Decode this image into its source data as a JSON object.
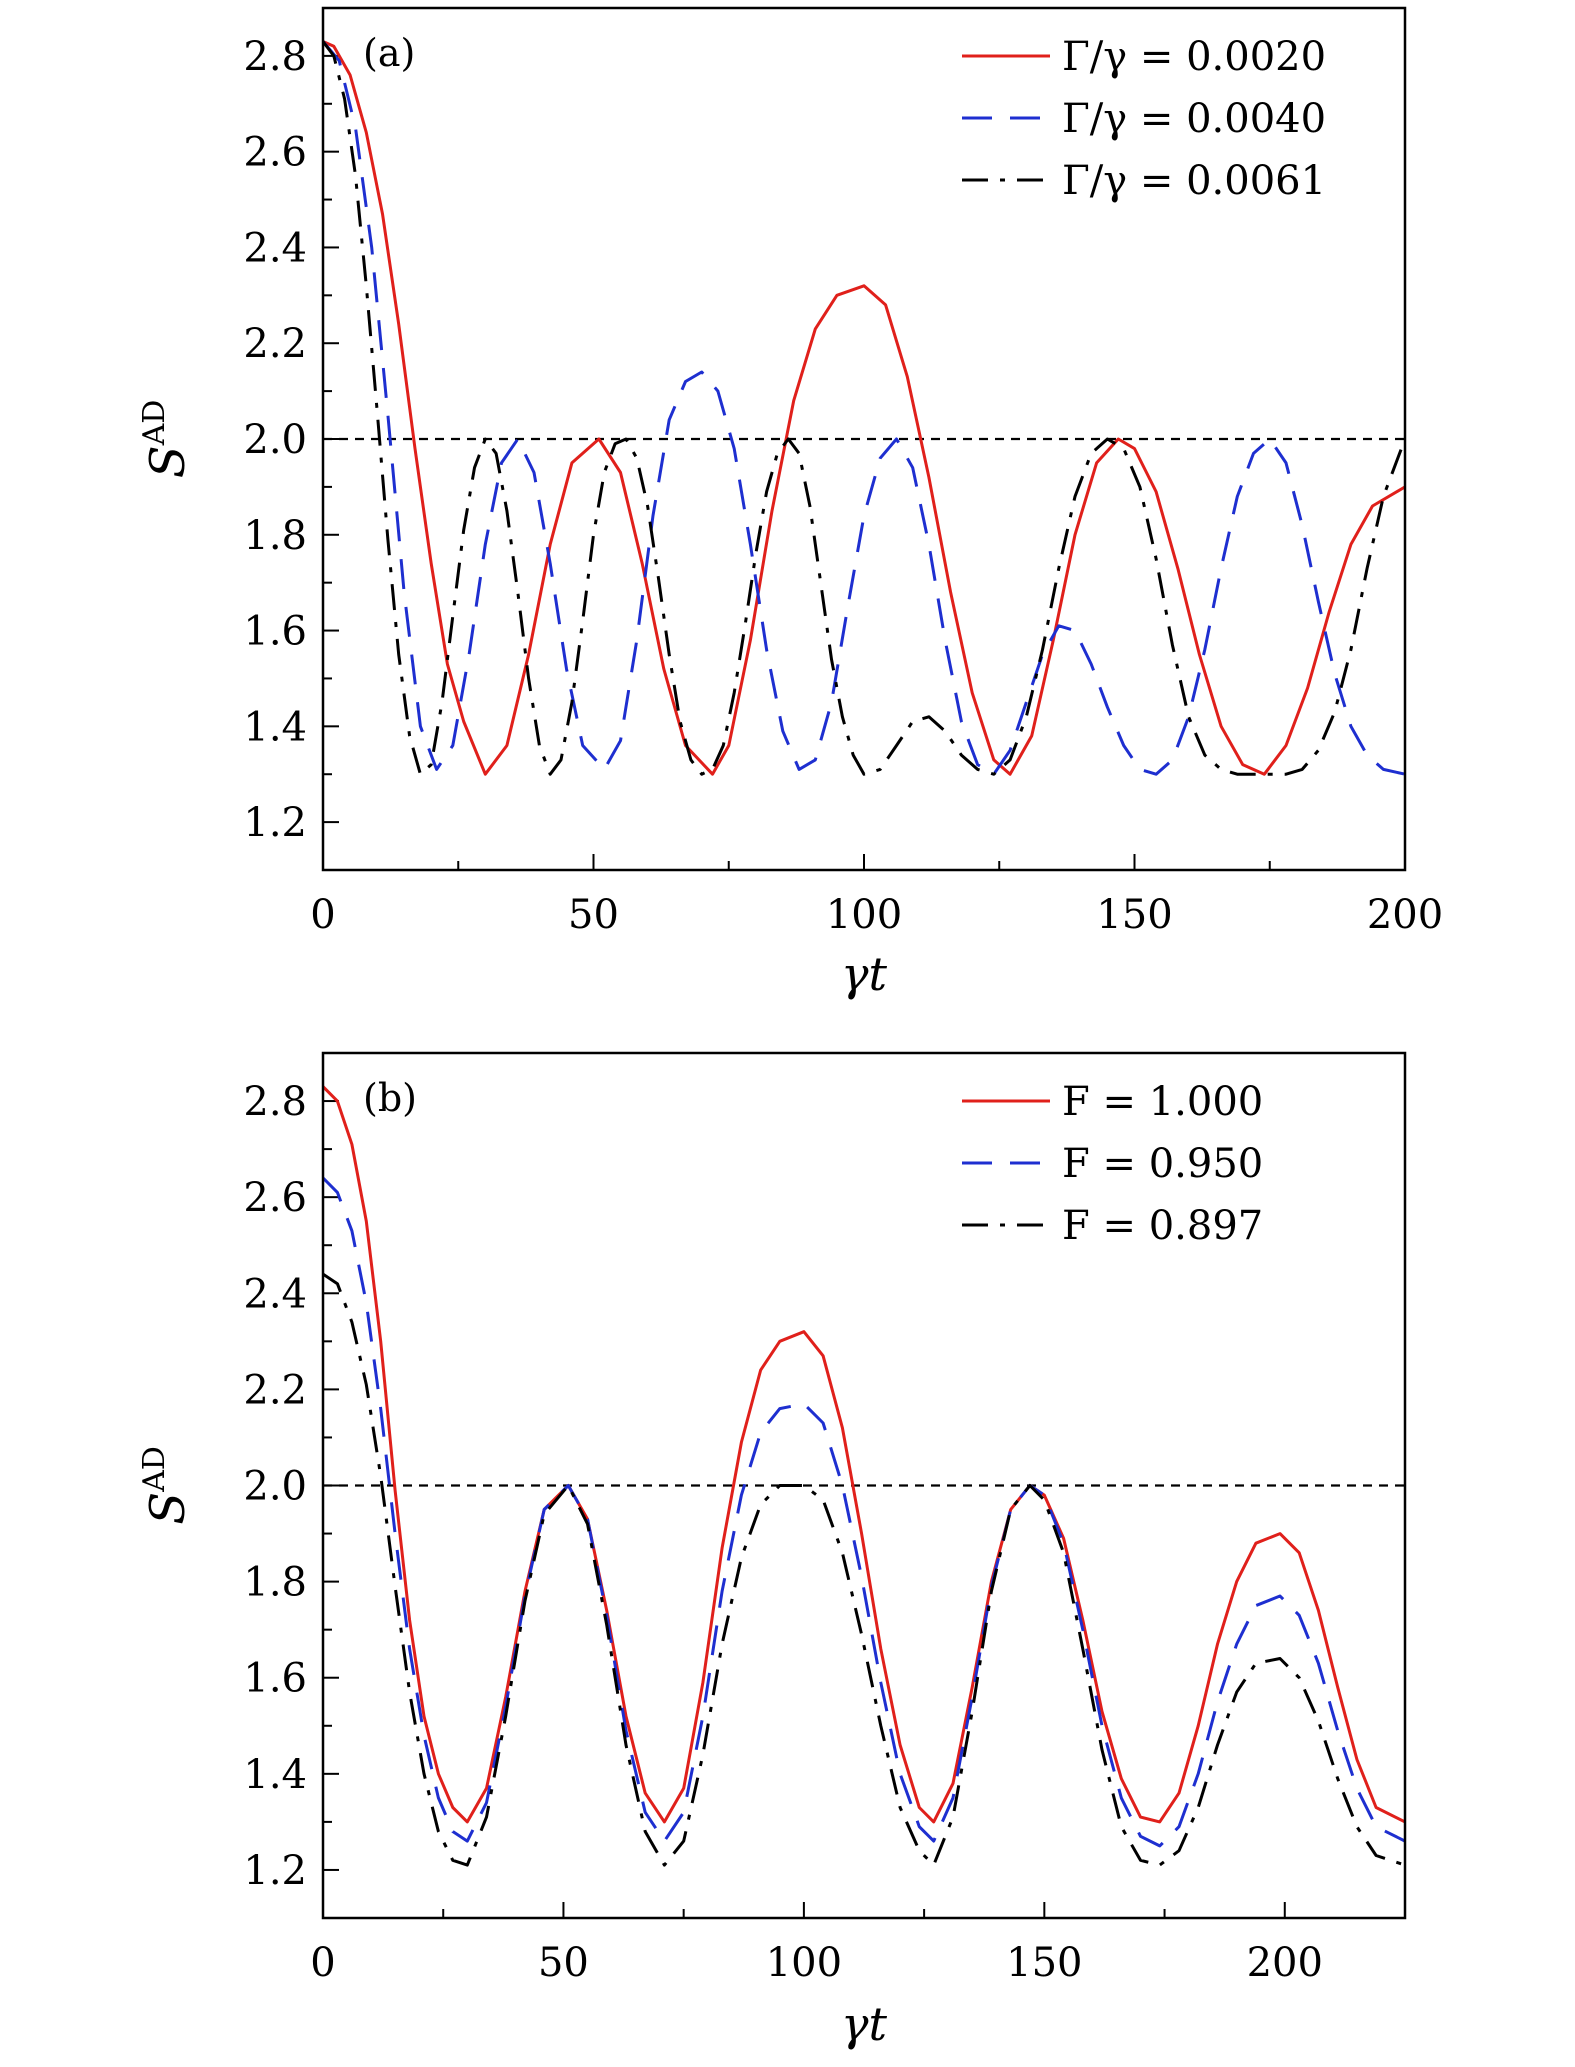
{
  "figure": {
    "panels": [
      "(a)",
      "(b)"
    ]
  },
  "chart_data": [
    {
      "type": "line",
      "panel_label": "(a)",
      "xlabel": "γt",
      "ylabel": "S^AD",
      "xlim": [
        0,
        200
      ],
      "ylim": [
        1.1,
        2.9
      ],
      "xticks": [
        0,
        50,
        100,
        150,
        200
      ],
      "yticks": [
        1.2,
        1.4,
        1.6,
        1.8,
        2.0,
        2.2,
        2.4,
        2.6,
        2.8
      ],
      "legend_position": "top-right",
      "reference_line": {
        "y": 2.0,
        "style": "dashed",
        "color": "#000000"
      },
      "series": [
        {
          "name": "Γ/γ = 0.0020",
          "color": "#e0201b",
          "dash": "solid",
          "x": [
            0,
            2,
            5,
            8,
            11,
            14,
            17,
            20,
            23,
            26,
            30,
            34,
            38,
            42,
            46,
            51,
            55,
            59,
            63,
            67,
            72,
            75,
            79,
            83,
            87,
            91,
            95,
            100,
            104,
            108,
            112,
            116,
            120,
            124,
            127,
            131,
            135,
            139,
            143,
            147,
            150,
            154,
            158,
            162,
            166,
            170,
            174,
            178,
            182,
            186,
            190,
            194,
            200
          ],
          "y": [
            2.83,
            2.82,
            2.76,
            2.64,
            2.47,
            2.24,
            1.98,
            1.74,
            1.53,
            1.41,
            1.3,
            1.36,
            1.55,
            1.78,
            1.95,
            2.0,
            1.93,
            1.74,
            1.52,
            1.36,
            1.3,
            1.36,
            1.58,
            1.85,
            2.08,
            2.23,
            2.3,
            2.32,
            2.28,
            2.13,
            1.92,
            1.68,
            1.47,
            1.33,
            1.3,
            1.38,
            1.58,
            1.8,
            1.95,
            2.0,
            1.98,
            1.89,
            1.73,
            1.55,
            1.4,
            1.32,
            1.3,
            1.36,
            1.48,
            1.64,
            1.78,
            1.86,
            1.9
          ]
        },
        {
          "name": "Γ/γ = 0.0040",
          "color": "#1e2fd0",
          "dash": "long-dash",
          "x": [
            0,
            3,
            6,
            9,
            12,
            15,
            18,
            21,
            24,
            27,
            30,
            33,
            36,
            39,
            42,
            45,
            48,
            52,
            55,
            58,
            61,
            64,
            67,
            70,
            73,
            76,
            79,
            82,
            85,
            88,
            91,
            94,
            97,
            100,
            103,
            106,
            109,
            112,
            115,
            118,
            121,
            124,
            127,
            130,
            133,
            136,
            139,
            142,
            145,
            148,
            151,
            154,
            157,
            160,
            163,
            166,
            169,
            172,
            175,
            178,
            181,
            184,
            187,
            190,
            193,
            196,
            200
          ],
          "y": [
            2.83,
            2.79,
            2.65,
            2.4,
            2.05,
            1.68,
            1.4,
            1.31,
            1.36,
            1.55,
            1.78,
            1.95,
            2.0,
            1.93,
            1.74,
            1.52,
            1.36,
            1.31,
            1.37,
            1.58,
            1.84,
            2.04,
            2.12,
            2.14,
            2.1,
            1.98,
            1.78,
            1.56,
            1.39,
            1.31,
            1.33,
            1.45,
            1.65,
            1.84,
            1.96,
            2.0,
            1.94,
            1.78,
            1.58,
            1.41,
            1.32,
            1.3,
            1.35,
            1.45,
            1.55,
            1.61,
            1.6,
            1.53,
            1.44,
            1.36,
            1.31,
            1.3,
            1.33,
            1.42,
            1.56,
            1.73,
            1.88,
            1.97,
            2.0,
            1.95,
            1.82,
            1.66,
            1.51,
            1.4,
            1.34,
            1.31,
            1.3
          ]
        },
        {
          "name": "Γ/γ = 0.0061",
          "color": "#000000",
          "dash": "dash-dot",
          "x": [
            0,
            2,
            4,
            6,
            8,
            10,
            12,
            14,
            16,
            18,
            20,
            22,
            24,
            26,
            28,
            30,
            32,
            34,
            36,
            38,
            40,
            42,
            44,
            46,
            48,
            50,
            52,
            54,
            56,
            58,
            60,
            62,
            64,
            66,
            68,
            70,
            72,
            74,
            76,
            78,
            80,
            82,
            84,
            86,
            88,
            90,
            92,
            94,
            96,
            98,
            100,
            103,
            106,
            109,
            112,
            115,
            118,
            121,
            124,
            127,
            130,
            133,
            136,
            139,
            142,
            145,
            148,
            151,
            154,
            157,
            160,
            163,
            166,
            169,
            172,
            175,
            178,
            181,
            184,
            187,
            190,
            193,
            196,
            200
          ],
          "y": [
            2.83,
            2.8,
            2.71,
            2.55,
            2.32,
            2.06,
            1.79,
            1.55,
            1.38,
            1.3,
            1.32,
            1.45,
            1.63,
            1.81,
            1.94,
            2.0,
            1.97,
            1.85,
            1.68,
            1.5,
            1.36,
            1.3,
            1.33,
            1.45,
            1.62,
            1.8,
            1.93,
            1.99,
            2.0,
            1.96,
            1.86,
            1.71,
            1.55,
            1.41,
            1.33,
            1.3,
            1.31,
            1.36,
            1.47,
            1.61,
            1.76,
            1.89,
            1.97,
            2.0,
            1.97,
            1.86,
            1.7,
            1.54,
            1.42,
            1.34,
            1.3,
            1.31,
            1.36,
            1.41,
            1.42,
            1.39,
            1.34,
            1.31,
            1.3,
            1.33,
            1.42,
            1.56,
            1.73,
            1.88,
            1.97,
            2.0,
            1.98,
            1.9,
            1.75,
            1.57,
            1.42,
            1.34,
            1.31,
            1.3,
            1.3,
            1.3,
            1.3,
            1.31,
            1.35,
            1.43,
            1.56,
            1.73,
            1.88,
            2.0
          ]
        }
      ]
    },
    {
      "type": "line",
      "panel_label": "(b)",
      "xlabel": "γt",
      "ylabel": "S^AD",
      "xlim": [
        0,
        225
      ],
      "ylim": [
        1.1,
        2.9
      ],
      "xticks": [
        0,
        50,
        100,
        150,
        200
      ],
      "yticks": [
        1.2,
        1.4,
        1.6,
        1.8,
        2.0,
        2.2,
        2.4,
        2.6,
        2.8
      ],
      "legend_position": "top-right",
      "reference_line": {
        "y": 2.0,
        "style": "dashed",
        "color": "#000000"
      },
      "series": [
        {
          "name": "F = 1.000",
          "color": "#e0201b",
          "dash": "solid",
          "x": [
            0,
            3,
            6,
            9,
            12,
            15,
            18,
            21,
            24,
            27,
            30,
            34,
            38,
            42,
            46,
            51,
            55,
            59,
            63,
            67,
            71,
            75,
            79,
            83,
            87,
            91,
            95,
            100,
            104,
            108,
            112,
            116,
            120,
            124,
            127,
            131,
            135,
            139,
            143,
            147,
            150,
            154,
            158,
            162,
            166,
            170,
            174,
            178,
            182,
            186,
            190,
            194,
            199,
            203,
            207,
            211,
            215,
            219,
            225
          ],
          "y": [
            2.83,
            2.8,
            2.71,
            2.55,
            2.3,
            1.99,
            1.72,
            1.52,
            1.4,
            1.33,
            1.3,
            1.37,
            1.56,
            1.78,
            1.95,
            2.0,
            1.93,
            1.74,
            1.52,
            1.36,
            1.3,
            1.37,
            1.59,
            1.87,
            2.09,
            2.24,
            2.3,
            2.32,
            2.27,
            2.12,
            1.9,
            1.66,
            1.46,
            1.33,
            1.3,
            1.38,
            1.58,
            1.8,
            1.95,
            2.0,
            1.98,
            1.89,
            1.72,
            1.53,
            1.39,
            1.31,
            1.3,
            1.36,
            1.5,
            1.67,
            1.8,
            1.88,
            1.9,
            1.86,
            1.74,
            1.58,
            1.43,
            1.33,
            1.3
          ]
        },
        {
          "name": "F = 0.950",
          "color": "#1e2fd0",
          "dash": "long-dash",
          "x": [
            0,
            3,
            6,
            9,
            12,
            15,
            18,
            21,
            24,
            27,
            30,
            34,
            38,
            42,
            46,
            51,
            55,
            59,
            63,
            67,
            71,
            75,
            79,
            83,
            87,
            91,
            95,
            100,
            104,
            108,
            112,
            116,
            120,
            124,
            127,
            131,
            135,
            139,
            143,
            147,
            150,
            154,
            158,
            162,
            166,
            170,
            174,
            178,
            182,
            186,
            190,
            194,
            199,
            203,
            207,
            211,
            215,
            219,
            225
          ],
          "y": [
            2.64,
            2.61,
            2.53,
            2.38,
            2.16,
            1.9,
            1.66,
            1.48,
            1.35,
            1.28,
            1.26,
            1.34,
            1.54,
            1.77,
            1.95,
            2.0,
            1.93,
            1.73,
            1.49,
            1.32,
            1.26,
            1.32,
            1.52,
            1.78,
            1.98,
            2.11,
            2.16,
            2.17,
            2.13,
            2.0,
            1.81,
            1.59,
            1.4,
            1.29,
            1.26,
            1.35,
            1.56,
            1.79,
            1.95,
            2.0,
            1.98,
            1.88,
            1.7,
            1.5,
            1.35,
            1.27,
            1.25,
            1.29,
            1.4,
            1.55,
            1.67,
            1.75,
            1.77,
            1.73,
            1.63,
            1.49,
            1.37,
            1.29,
            1.26
          ]
        },
        {
          "name": "F = 0.897",
          "color": "#000000",
          "dash": "dash-dot",
          "x": [
            0,
            3,
            6,
            9,
            12,
            15,
            18,
            21,
            24,
            27,
            30,
            34,
            38,
            42,
            46,
            51,
            55,
            59,
            63,
            67,
            71,
            75,
            79,
            83,
            87,
            91,
            95,
            100,
            104,
            108,
            112,
            116,
            120,
            124,
            127,
            131,
            135,
            139,
            143,
            147,
            150,
            154,
            158,
            162,
            166,
            170,
            174,
            178,
            182,
            186,
            190,
            194,
            199,
            203,
            207,
            211,
            215,
            219,
            225
          ],
          "y": [
            2.44,
            2.42,
            2.34,
            2.21,
            2.02,
            1.79,
            1.57,
            1.4,
            1.28,
            1.22,
            1.21,
            1.31,
            1.52,
            1.76,
            1.94,
            2.0,
            1.92,
            1.71,
            1.46,
            1.28,
            1.21,
            1.26,
            1.44,
            1.67,
            1.85,
            1.96,
            2.0,
            2.0,
            1.97,
            1.86,
            1.69,
            1.5,
            1.33,
            1.24,
            1.21,
            1.31,
            1.53,
            1.78,
            1.95,
            2.0,
            1.97,
            1.86,
            1.66,
            1.45,
            1.29,
            1.22,
            1.21,
            1.24,
            1.33,
            1.46,
            1.57,
            1.63,
            1.64,
            1.6,
            1.51,
            1.39,
            1.29,
            1.23,
            1.21
          ]
        }
      ]
    }
  ]
}
